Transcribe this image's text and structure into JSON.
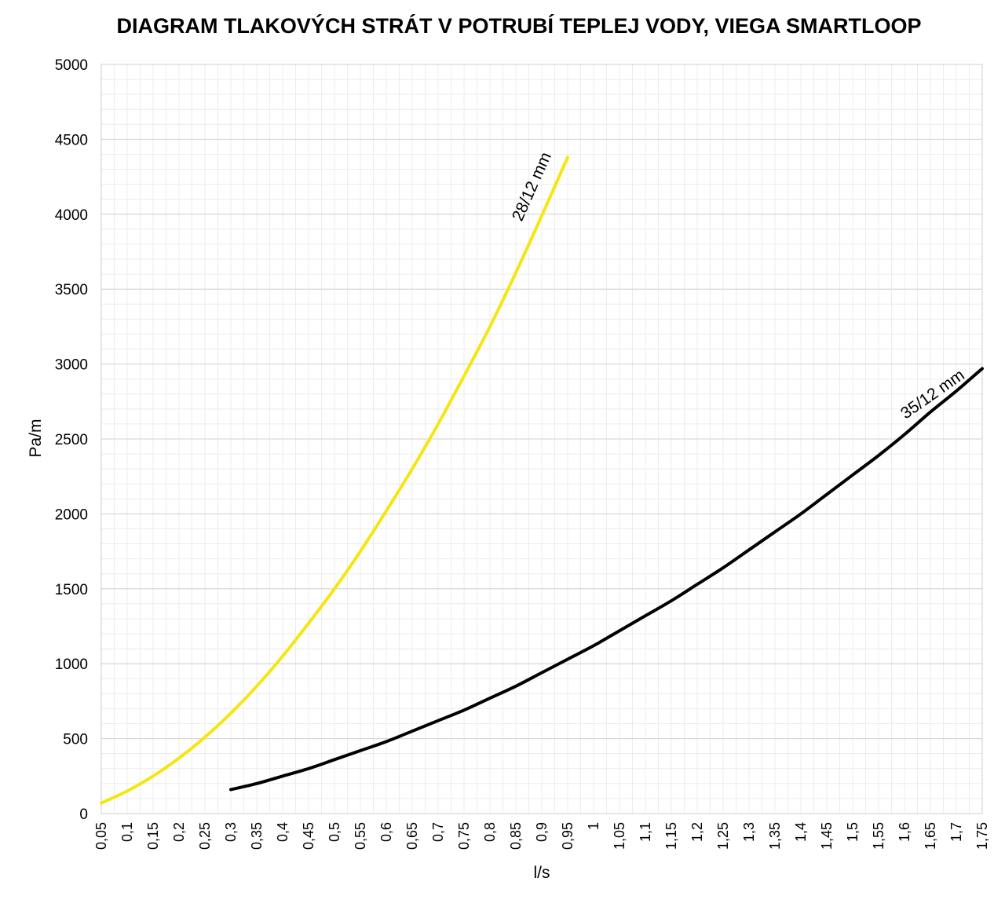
{
  "title": "DIAGRAM TLAKOVÝCH STRÁT V POTRUBÍ TEPLEJ VODY, VIEGA SMARTLOOP",
  "chart_data": {
    "type": "line",
    "title": "DIAGRAM TLAKOVÝCH STRÁT V POTRUBÍ TEPLEJ VODY, VIEGA SMARTLOOP",
    "xlabel": "l/s",
    "ylabel": "Pa/m",
    "xlim": [
      0.05,
      1.75
    ],
    "ylim": [
      0,
      5000
    ],
    "grid": true,
    "x_ticks": [
      "0,05",
      "0,1",
      "0,15",
      "0,2",
      "0,25",
      "0,3",
      "0,35",
      "0,4",
      "0,45",
      "0,5",
      "0,55",
      "0,6",
      "0,65",
      "0,7",
      "0,75",
      "0,8",
      "0,85",
      "0,9",
      "0,95",
      "1",
      "1,05",
      "1,1",
      "1,15",
      "1,2",
      "1,25",
      "1,3",
      "1,35",
      "1,4",
      "1,45",
      "1,5",
      "1,55",
      "1,6",
      "1,65",
      "1,7",
      "1,75"
    ],
    "y_ticks": [
      "0",
      "500",
      "1000",
      "1500",
      "2000",
      "2500",
      "3000",
      "3500",
      "4000",
      "4500",
      "5000"
    ],
    "series": [
      {
        "name": "28/12 mm",
        "color": "#f5e612",
        "x": [
          0.05,
          0.1,
          0.15,
          0.2,
          0.25,
          0.3,
          0.35,
          0.4,
          0.45,
          0.5,
          0.55,
          0.6,
          0.65,
          0.7,
          0.75,
          0.8,
          0.85,
          0.9,
          0.95
        ],
        "y": [
          70,
          150,
          250,
          370,
          510,
          670,
          850,
          1050,
          1270,
          1500,
          1750,
          2020,
          2300,
          2600,
          2920,
          3250,
          3610,
          3990,
          4380
        ]
      },
      {
        "name": "35/12 mm",
        "color": "#000000",
        "x": [
          0.3,
          0.35,
          0.4,
          0.45,
          0.5,
          0.55,
          0.6,
          0.65,
          0.7,
          0.75,
          0.8,
          0.85,
          0.9,
          0.95,
          1,
          1.05,
          1.1,
          1.15,
          1.2,
          1.25,
          1.3,
          1.35,
          1.4,
          1.45,
          1.5,
          1.55,
          1.6,
          1.65,
          1.7,
          1.75
        ],
        "y": [
          160,
          200,
          250,
          300,
          360,
          420,
          480,
          550,
          620,
          690,
          770,
          850,
          940,
          1030,
          1120,
          1220,
          1320,
          1420,
          1530,
          1640,
          1760,
          1880,
          2000,
          2130,
          2260,
          2390,
          2530,
          2680,
          2820,
          2970
        ]
      }
    ]
  }
}
